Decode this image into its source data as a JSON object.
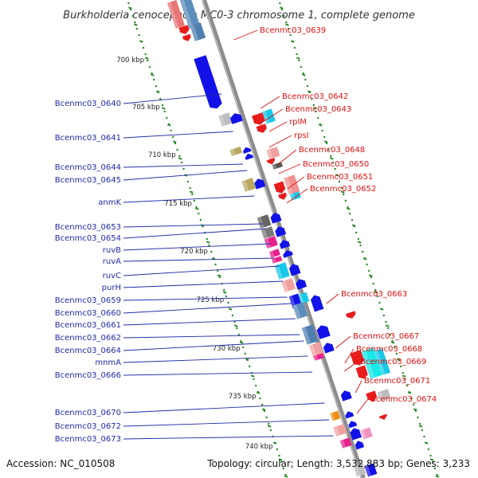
{
  "title": "Burkholderia cenocepacia MC0-3 chromosome 1, complete genome",
  "footer": {
    "accession": "Accession: NC_010508",
    "summary": "Topology: circular; Length: 3,532,883 bp; Genes: 3,233"
  },
  "colors": {
    "backbone": "#8c8c8c",
    "tick": "#2a8a2a",
    "label_left": "#1f2aa8",
    "label_right": "#e01010"
  },
  "scale_labels": [
    "700 kbp",
    "705 kbp",
    "710 kbp",
    "715 kbp",
    "720 kbp",
    "725 kbp",
    "730 kbp",
    "735 kbp",
    "740 kbp"
  ],
  "left_labels": [
    "Bcenmc03_0640",
    "Bcenmc03_0641",
    "Bcenmc03_0644",
    "Bcenmc03_0645",
    "anmK",
    "Bcenmc03_0653",
    "Bcenmc03_0654",
    "ruvB",
    "ruvA",
    "ruvC",
    "purH",
    "Bcenmc03_0659",
    "Bcenmc03_0660",
    "Bcenmc03_0661",
    "Bcenmc03_0662",
    "Bcenmc03_0664",
    "mnmA",
    "Bcenmc03_0666",
    "Bcenmc03_0670",
    "Bcenmc03_0672",
    "Bcenmc03_0673"
  ],
  "right_labels": [
    "Bcenmc03_0639",
    "Bcenmc03_0642",
    "Bcenmc03_0643",
    "rplM",
    "rpsI",
    "Bcenmc03_0648",
    "Bcenmc03_0650",
    "Bcenmc03_0651",
    "Bcenmc03_0652",
    "Bcenmc03_0663",
    "Bcenmc03_0667",
    "Bcenmc03_0668",
    "Bcenmc03_0669",
    "Bcenmc03_0671",
    "Bcenmc03_0674"
  ]
}
